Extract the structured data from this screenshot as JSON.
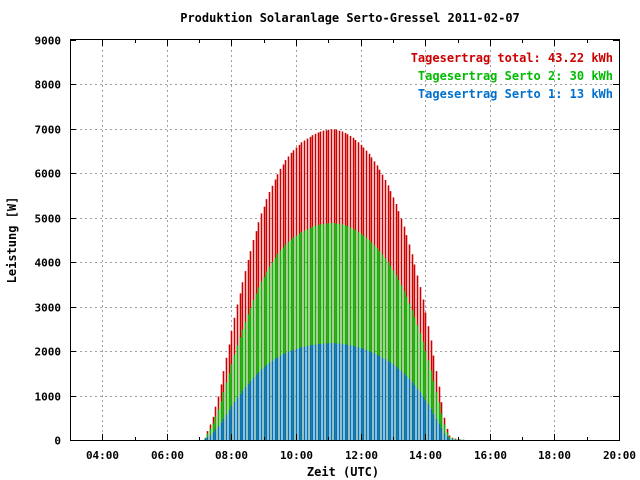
{
  "chart_data": {
    "type": "bar",
    "title": "Produktion Solaranlage Serto-Gressel 2011-02-07",
    "xlabel": "Zeit (UTC)",
    "ylabel": "Leistung [W]",
    "x_ticks": [
      "04:00",
      "06:00",
      "08:00",
      "10:00",
      "12:00",
      "14:00",
      "16:00",
      "18:00",
      "20:00"
    ],
    "y_ticks": [
      "0",
      "1000",
      "2000",
      "3000",
      "4000",
      "5000",
      "6000",
      "7000",
      "8000",
      "9000"
    ],
    "xlim_hours": [
      3.0,
      20.0
    ],
    "ylim": [
      0,
      9000
    ],
    "bar_interval_minutes": 5,
    "x_start_hours": 6.917,
    "grid": true,
    "legend_position": "top-right",
    "series": [
      {
        "name": "Tagesertrag total: 43.22 kWh",
        "color": "#cc0000",
        "values": [
          0,
          0,
          0,
          50,
          200,
          350,
          520,
          750,
          980,
          1250,
          1550,
          1850,
          2150,
          2450,
          2750,
          3050,
          3300,
          3550,
          3800,
          4050,
          4250,
          4500,
          4700,
          4900,
          5100,
          5250,
          5420,
          5580,
          5720,
          5860,
          5980,
          6100,
          6200,
          6300,
          6380,
          6460,
          6520,
          6580,
          6640,
          6700,
          6740,
          6780,
          6820,
          6860,
          6890,
          6920,
          6940,
          6960,
          6970,
          6980,
          6990,
          6990,
          6980,
          6960,
          6940,
          6910,
          6880,
          6840,
          6800,
          6750,
          6700,
          6640,
          6580,
          6510,
          6440,
          6360,
          6270,
          6180,
          6080,
          5970,
          5850,
          5730,
          5600,
          5460,
          5310,
          5150,
          4980,
          4800,
          4610,
          4400,
          4180,
          3950,
          3700,
          3440,
          3160,
          2870,
          2560,
          2240,
          1900,
          1550,
          1200,
          850,
          500,
          250,
          100,
          50,
          30,
          20,
          10,
          5
        ]
      },
      {
        "name": "Tagesertrag Serto 2: 30 kWh",
        "color": "#00bb00",
        "values": [
          0,
          0,
          0,
          40,
          150,
          250,
          370,
          530,
          690,
          870,
          1080,
          1290,
          1500,
          1710,
          1920,
          2130,
          2310,
          2490,
          2660,
          2830,
          2970,
          3150,
          3290,
          3430,
          3570,
          3670,
          3790,
          3900,
          4000,
          4100,
          4180,
          4260,
          4330,
          4400,
          4460,
          4510,
          4560,
          4600,
          4640,
          4680,
          4710,
          4740,
          4770,
          4800,
          4820,
          4840,
          4850,
          4860,
          4870,
          4880,
          4880,
          4880,
          4870,
          4860,
          4850,
          4830,
          4810,
          4780,
          4750,
          4720,
          4680,
          4640,
          4600,
          4550,
          4500,
          4440,
          4380,
          4320,
          4250,
          4170,
          4090,
          4000,
          3910,
          3810,
          3710,
          3600,
          3480,
          3350,
          3220,
          3070,
          2920,
          2760,
          2590,
          2400,
          2210,
          2000,
          1790,
          1560,
          1330,
          1080,
          840,
          590,
          350,
          170,
          70,
          35,
          20,
          14,
          7,
          3
        ]
      },
      {
        "name": "Tagesertrag Serto 1: 13 kWh",
        "color": "#0070cc",
        "values": [
          0,
          0,
          0,
          20,
          70,
          110,
          170,
          240,
          310,
          390,
          480,
          570,
          670,
          760,
          860,
          950,
          1030,
          1110,
          1190,
          1260,
          1330,
          1400,
          1470,
          1530,
          1590,
          1640,
          1690,
          1740,
          1780,
          1830,
          1860,
          1900,
          1930,
          1960,
          1990,
          2010,
          2030,
          2050,
          2070,
          2090,
          2100,
          2110,
          2130,
          2140,
          2150,
          2160,
          2160,
          2170,
          2170,
          2180,
          2180,
          2180,
          2170,
          2170,
          2160,
          2150,
          2140,
          2130,
          2120,
          2100,
          2090,
          2070,
          2050,
          2030,
          2000,
          1980,
          1950,
          1920,
          1890,
          1850,
          1820,
          1780,
          1740,
          1700,
          1650,
          1600,
          1550,
          1490,
          1430,
          1370,
          1300,
          1230,
          1150,
          1070,
          980,
          890,
          800,
          700,
          590,
          480,
          370,
          260,
          150,
          80,
          30,
          15,
          10,
          6,
          3,
          2
        ]
      }
    ]
  }
}
